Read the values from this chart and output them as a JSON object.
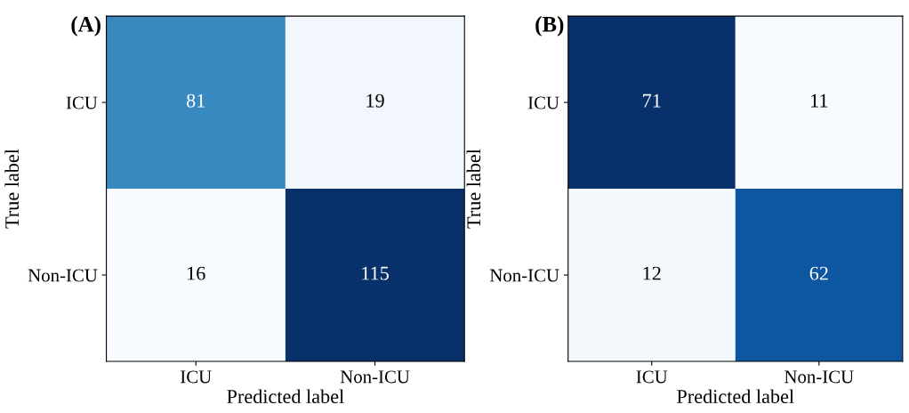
{
  "chart_data": [
    {
      "type": "heatmap",
      "title": "(A)",
      "xlabel": "Predicted label",
      "ylabel": "True label",
      "categories": [
        "ICU",
        "Non-ICU"
      ],
      "y_categories": [
        "ICU",
        "Non-ICU"
      ],
      "cells": [
        [
          81,
          19
        ],
        [
          16,
          115
        ]
      ],
      "data_labels": true
    },
    {
      "type": "heatmap",
      "title": "(B)",
      "xlabel": "Predicted label",
      "ylabel": "True label",
      "categories": [
        "ICU",
        "Non-ICU"
      ],
      "y_categories": [
        "ICU",
        "Non-ICU"
      ],
      "cells": [
        [
          71,
          11
        ],
        [
          12,
          62
        ]
      ],
      "data_labels": true
    }
  ]
}
